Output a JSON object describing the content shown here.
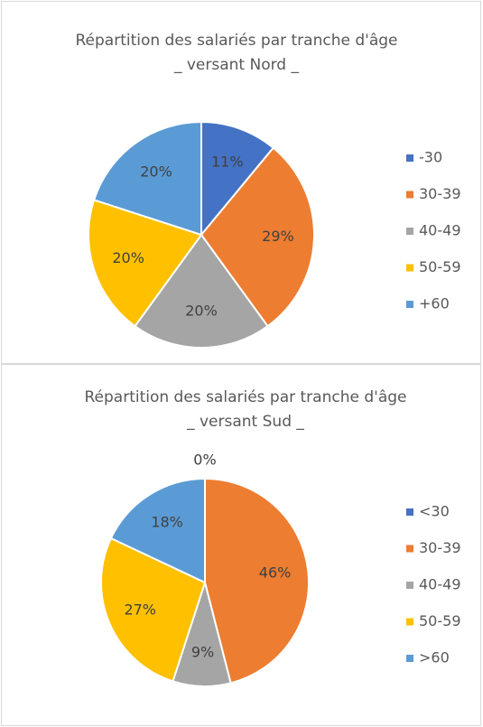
{
  "chart_data": [
    {
      "type": "pie",
      "title": "Répartition des salariés par tranche d'âge",
      "subtitle": "_ versant Nord _",
      "categories": [
        "-30",
        "30-39",
        "40-49",
        "50-59",
        "+60"
      ],
      "values": [
        11,
        29,
        20,
        20,
        20
      ],
      "value_labels": [
        "11%",
        "29%",
        "20%",
        "20%",
        "20%"
      ],
      "colors": [
        "#4472c4",
        "#ed7d31",
        "#a5a5a5",
        "#ffc000",
        "#5b9bd5"
      ],
      "legend": "right"
    },
    {
      "type": "pie",
      "title": "Répartition des salariés par tranche d'âge",
      "subtitle": "_ versant Sud _",
      "categories": [
        "<30",
        "30-39",
        "40-49",
        "50-59",
        ">60"
      ],
      "values": [
        0,
        46,
        9,
        27,
        18
      ],
      "value_labels": [
        "0%",
        "46%",
        "9%",
        "27%",
        "18%"
      ],
      "colors": [
        "#4472c4",
        "#ed7d31",
        "#a5a5a5",
        "#ffc000",
        "#5b9bd5"
      ],
      "legend": "right"
    }
  ]
}
